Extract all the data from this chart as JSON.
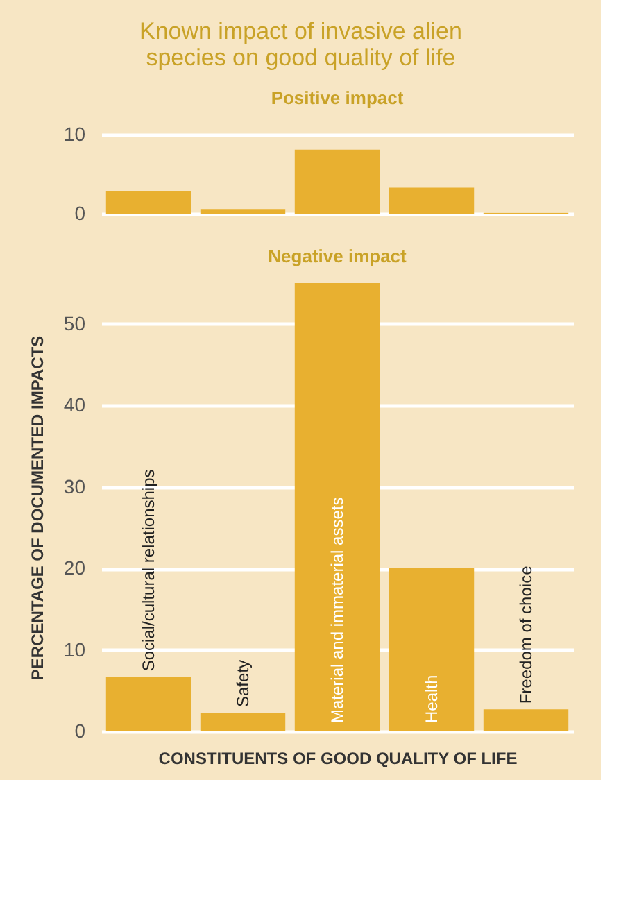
{
  "chart_data": [
    {
      "type": "bar",
      "title": [
        "Known impact of invasive alien",
        "species on good quality of life"
      ],
      "subtitle": "Positive impact",
      "categories": [
        null,
        null,
        null,
        null,
        null
      ],
      "values": [
        2.9,
        0.6,
        8.1,
        3.3,
        0.1
      ],
      "color": "#e8b030",
      "ylim": [
        0,
        10
      ],
      "yticks": [
        0,
        10
      ],
      "grid": "y",
      "tick_labels": "y"
    },
    {
      "type": "bar",
      "subtitle": "Negative impact",
      "ylabel": "PERCENTAGE OF DOCUMENTED IMPACTS",
      "xlabel": "CONSTITUENTS OF GOOD QUALITY OF LIFE",
      "categories": [
        "Social/cultural relationships",
        "Safety",
        "Material and immaterial assets",
        "Health",
        "Freedom of choice"
      ],
      "values": [
        6.7,
        2.3,
        55.0,
        20.0,
        2.7
      ],
      "color": "#e8b030",
      "ylim": [
        0,
        55
      ],
      "yticks": [
        0,
        10,
        20,
        30,
        40,
        50
      ],
      "grid": "y"
    }
  ]
}
